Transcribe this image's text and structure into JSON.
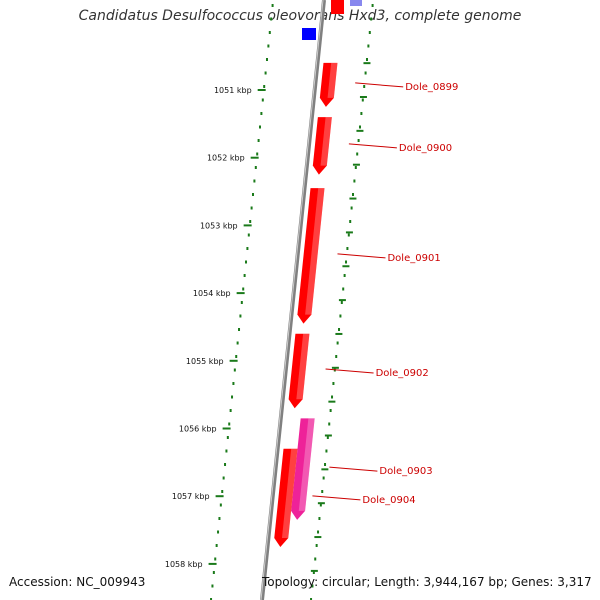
{
  "title": "Candidatus Desulfococcus oleovorans Hxd3, complete genome",
  "footer": {
    "accession": "Accession: NC_009943",
    "topology": "Topology: circular; Length: 3,944,167 bp; Genes: 3,317"
  },
  "ticks": [
    {
      "label": "1051 kbp",
      "kbp": 1051
    },
    {
      "label": "1052 kbp",
      "kbp": 1052
    },
    {
      "label": "1053 kbp",
      "kbp": 1053
    },
    {
      "label": "1054 kbp",
      "kbp": 1054
    },
    {
      "label": "1055 kbp",
      "kbp": 1055
    },
    {
      "label": "1056 kbp",
      "kbp": 1056
    },
    {
      "label": "1057 kbp",
      "kbp": 1057
    },
    {
      "label": "1058 kbp",
      "kbp": 1058
    }
  ],
  "genes": [
    {
      "name": "Dole_0899",
      "start_kbp": 1050.6,
      "end_kbp": 1051.25,
      "color": "#ff0000",
      "track": 1
    },
    {
      "name": "Dole_0900",
      "start_kbp": 1051.4,
      "end_kbp": 1052.25,
      "color": "#ff0000",
      "track": 1
    },
    {
      "name": "Dole_0901",
      "start_kbp": 1052.45,
      "end_kbp": 1054.45,
      "color": "#ff0000",
      "track": 1
    },
    {
      "name": "Dole_0902",
      "start_kbp": 1054.6,
      "end_kbp": 1055.7,
      "color": "#ff0000",
      "track": 1
    },
    {
      "name": "Dole_0903",
      "start_kbp": 1055.85,
      "end_kbp": 1057.35,
      "color": "#ee2299",
      "track": 2
    },
    {
      "name": "Dole_0904",
      "start_kbp": 1056.3,
      "end_kbp": 1057.75,
      "color": "#ff0000",
      "track": 1
    }
  ],
  "colors": {
    "backbone": "#808080",
    "tick_ruler": "#1a7a1a",
    "gene_label": "#cc0000",
    "blue_feature": "#0000ff",
    "lavender_feature": "#8888ee"
  }
}
